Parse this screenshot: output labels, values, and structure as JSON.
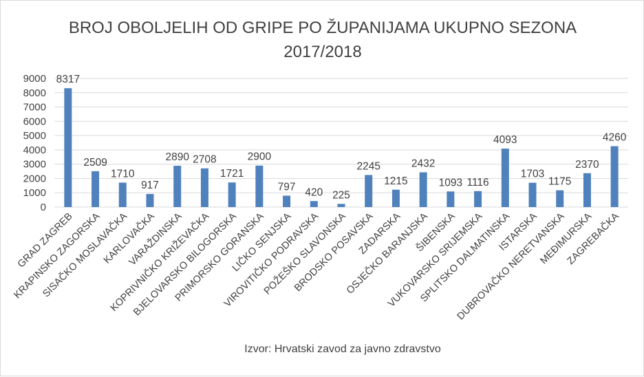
{
  "chart_data": {
    "type": "bar",
    "title_lines": [
      "BROJ OBOLJELIH OD GRIPE PO ŽUPANIJAMA UKUPNO SEZONA",
      "2017/2018"
    ],
    "categories": [
      "GRAD ZAGREB",
      "KRAPINSKO ZAGORSKA",
      "SISAČKO MOSLAVAČKA",
      "KARLOVAČKA",
      "VARAŽDINSKA",
      "KOPRIVNIČKO KRIŽEVAČKA",
      "BJELOVARSKO BILOGORSKA",
      "PRIMORSKO GORANSKA",
      "LIČKO SENJSKA",
      "VIROVITIČKO PODRAVSKA",
      "POŽEŠKO SLAVONSKA",
      "BRODSKO POSAVSKA",
      "ZADARSKA",
      "OSJEČKO BARANJSKA",
      "ŠIBENSKA",
      "VUKOVARSKO SRIJEMSKA",
      "SPLITSKO DALMATINSKA",
      "ISTARSKA",
      "DUBROVAČKO NERETVANSKA",
      "MEĐIMURSKA",
      "ZAGREBAČKA"
    ],
    "values": [
      8317,
      2509,
      1710,
      917,
      2890,
      2708,
      1721,
      2900,
      797,
      420,
      225,
      2245,
      1215,
      2432,
      1093,
      1116,
      4093,
      1703,
      1175,
      2370,
      4260
    ],
    "ylim": [
      0,
      9000
    ],
    "yticks": [
      "0",
      "1000",
      "2000",
      "3000",
      "4000",
      "5000",
      "6000",
      "7000",
      "8000",
      "9000"
    ],
    "grid": true,
    "legend": "none",
    "bar_color": "#4f81bd",
    "source_note": "Izvor: Hrvatski zavod za javno zdravstvo"
  }
}
